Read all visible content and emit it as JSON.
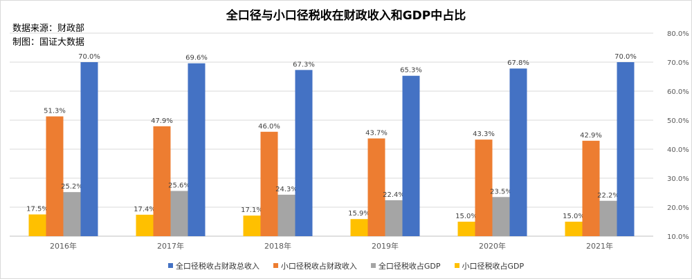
{
  "chart_data": {
    "type": "bar",
    "title": "全口径与小口径税收在财政收入和GDP中占比",
    "source_line": "数据来源：财政部",
    "maker_line": "制图：国证大数据",
    "categories": [
      "2016年",
      "2017年",
      "2018年",
      "2019年",
      "2020年",
      "2021年"
    ],
    "series": [
      {
        "name": "小口径税收占GDP",
        "color": "#FFC000",
        "values": [
          17.5,
          17.4,
          17.1,
          15.9,
          15.0,
          15.0
        ]
      },
      {
        "name": "小口径税收占财政收入",
        "color": "#ED7D31",
        "values": [
          51.3,
          47.9,
          46.0,
          43.7,
          43.3,
          42.9
        ]
      },
      {
        "name": "全口径税收占GDP",
        "color": "#A5A5A5",
        "values": [
          25.2,
          25.6,
          24.3,
          22.4,
          23.5,
          22.2
        ]
      },
      {
        "name": "全口径税收占财政总收入",
        "color": "#4472C4",
        "values": [
          70.0,
          69.6,
          67.3,
          65.3,
          67.8,
          70.0
        ]
      }
    ],
    "legend_order": [
      "全口径税收占财政总收入",
      "小口径税收占财政收入",
      "全口径税收占GDP",
      "小口径税收占GDP"
    ],
    "data_labels": [
      [
        "17.5%",
        "17.4%",
        "17.1%",
        "15.9%",
        "15.0%",
        "15.0%"
      ],
      [
        "51.3%",
        "47.9%",
        "46.0%",
        "43.7%",
        "43.3%",
        "42.9%"
      ],
      [
        "25.2%",
        "25.6%",
        "24.3%",
        "22.4%",
        "23.5%",
        "22.2%"
      ],
      [
        "70.0%",
        "69.6%",
        "67.3%",
        "65.3%",
        "67.8%",
        "70.0%"
      ]
    ],
    "y_ticks": [
      {
        "value": 10,
        "label": "10.0%"
      },
      {
        "value": 20,
        "label": "20.0%"
      },
      {
        "value": 30,
        "label": "30.0%"
      },
      {
        "value": 40,
        "label": "40.0%"
      },
      {
        "value": 50,
        "label": "50.0%"
      },
      {
        "value": 60,
        "label": "60.0%"
      },
      {
        "value": 70,
        "label": "70.0%"
      },
      {
        "value": 80,
        "label": "80.0%"
      }
    ],
    "ylim": [
      10,
      80
    ],
    "y_axis_side": "right",
    "grid": true,
    "legend_position": "bottom",
    "colors": {
      "grid": "#d9d9d9",
      "axis": "#bfbfbf",
      "text": "#595959"
    }
  }
}
